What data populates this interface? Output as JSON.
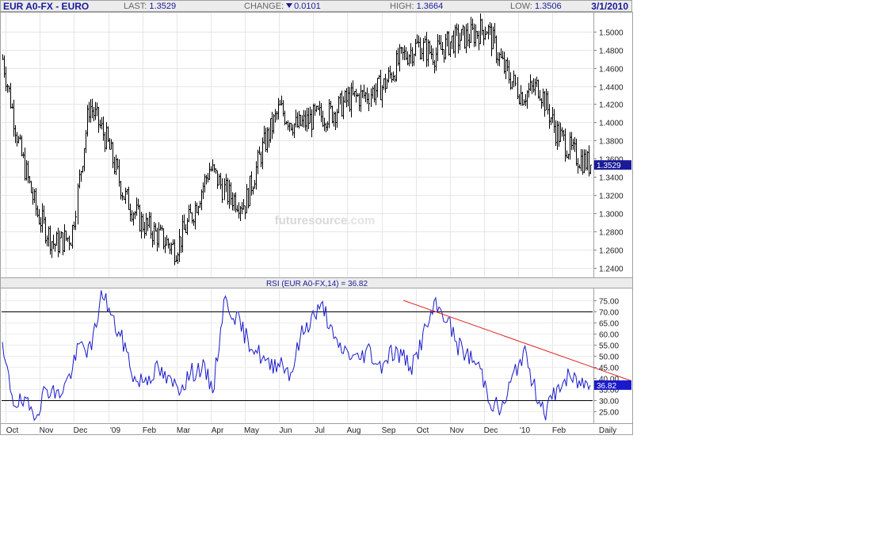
{
  "header": {
    "symbol": "EUR A0-FX - EURO",
    "last_label": "LAST:",
    "last_value": "1.3529",
    "change_label": "CHANGE:",
    "change_value": "0.0101",
    "high_label": "HIGH:",
    "high_value": "1.3664",
    "low_label": "LOW:",
    "low_value": "1.3506",
    "date": "3/1/2010",
    "change_icon": "down-triangle-icon"
  },
  "watermark": {
    "text": "futuresource",
    "suffix": ".com"
  },
  "x_axis": {
    "labels": [
      "Oct",
      "Nov",
      "Dec",
      "'09",
      "Feb",
      "Mar",
      "Apr",
      "May",
      "Jun",
      "Jul",
      "Aug",
      "Sep",
      "Oct",
      "Nov",
      "Dec",
      "'10",
      "Feb"
    ],
    "period": "Daily"
  },
  "chart_data": [
    {
      "type": "line",
      "style": "ohlc-bars",
      "series": [
        {
          "x": [
            "2008-10",
            "2008-10",
            "2008-11",
            "2008-11",
            "2008-12",
            "2008-12",
            "2009-01",
            "2009-01",
            "2009-02",
            "2009-02",
            "2009-03",
            "2009-03",
            "2009-04",
            "2009-04",
            "2009-05",
            "2009-05",
            "2009-06",
            "2009-06",
            "2009-07",
            "2009-07",
            "2009-08",
            "2009-08",
            "2009-09",
            "2009-09",
            "2009-10",
            "2009-10",
            "2009-11",
            "2009-11",
            "2009-12",
            "2009-12",
            "2010-01",
            "2010-01",
            "2010-02",
            "2010-02",
            "2010-03"
          ],
          "values": [
            1.47,
            1.37,
            1.3,
            1.265,
            1.275,
            1.42,
            1.38,
            1.32,
            1.29,
            1.275,
            1.26,
            1.3,
            1.35,
            1.32,
            1.31,
            1.37,
            1.415,
            1.395,
            1.405,
            1.41,
            1.425,
            1.43,
            1.44,
            1.47,
            1.485,
            1.475,
            1.49,
            1.495,
            1.505,
            1.46,
            1.43,
            1.44,
            1.39,
            1.365,
            1.353
          ]
        }
      ],
      "ylim": [
        1.23,
        1.52
      ],
      "y_ticks": [
        "1.5000",
        "1.4800",
        "1.4600",
        "1.4400",
        "1.4200",
        "1.4000",
        "1.3800",
        "1.3600",
        "1.3400",
        "1.3200",
        "1.3000",
        "1.2800",
        "1.2600",
        "1.2400"
      ],
      "last_value_label": "1.3529",
      "colors": {
        "bars": "#000000",
        "last_label_bg": "#1a1a99"
      }
    },
    {
      "type": "line",
      "title": "RSI (EUR A0-FX,14) = 36.82",
      "series": [
        {
          "values": [
            52,
            30,
            28,
            24,
            36,
            32,
            40,
            55,
            52,
            80,
            65,
            55,
            38,
            40,
            44,
            38,
            36,
            42,
            45,
            35,
            75,
            68,
            58,
            52,
            45,
            48,
            42,
            60,
            68,
            72,
            55,
            52,
            48,
            53,
            45,
            52,
            50,
            45,
            60,
            72,
            68,
            55,
            50,
            45,
            30,
            25,
            40,
            52,
            35,
            25,
            35,
            40,
            38,
            36.82
          ]
        }
      ],
      "ylim": [
        20,
        80
      ],
      "y_ticks": [
        "75.00",
        "70.00",
        "65.00",
        "60.00",
        "55.00",
        "50.00",
        "45.00",
        "40.00",
        "35.00",
        "30.00",
        "25.00"
      ],
      "reference_lines": [
        70,
        30
      ],
      "trendline": {
        "from": [
          2009.72,
          75
        ],
        "to": [
          2010.18,
          45
        ]
      },
      "last_value_label": "36.82",
      "colors": {
        "line": "#1a1acc",
        "trendline": "#dd2222",
        "last_label_bg": "#1a1acc"
      }
    }
  ]
}
